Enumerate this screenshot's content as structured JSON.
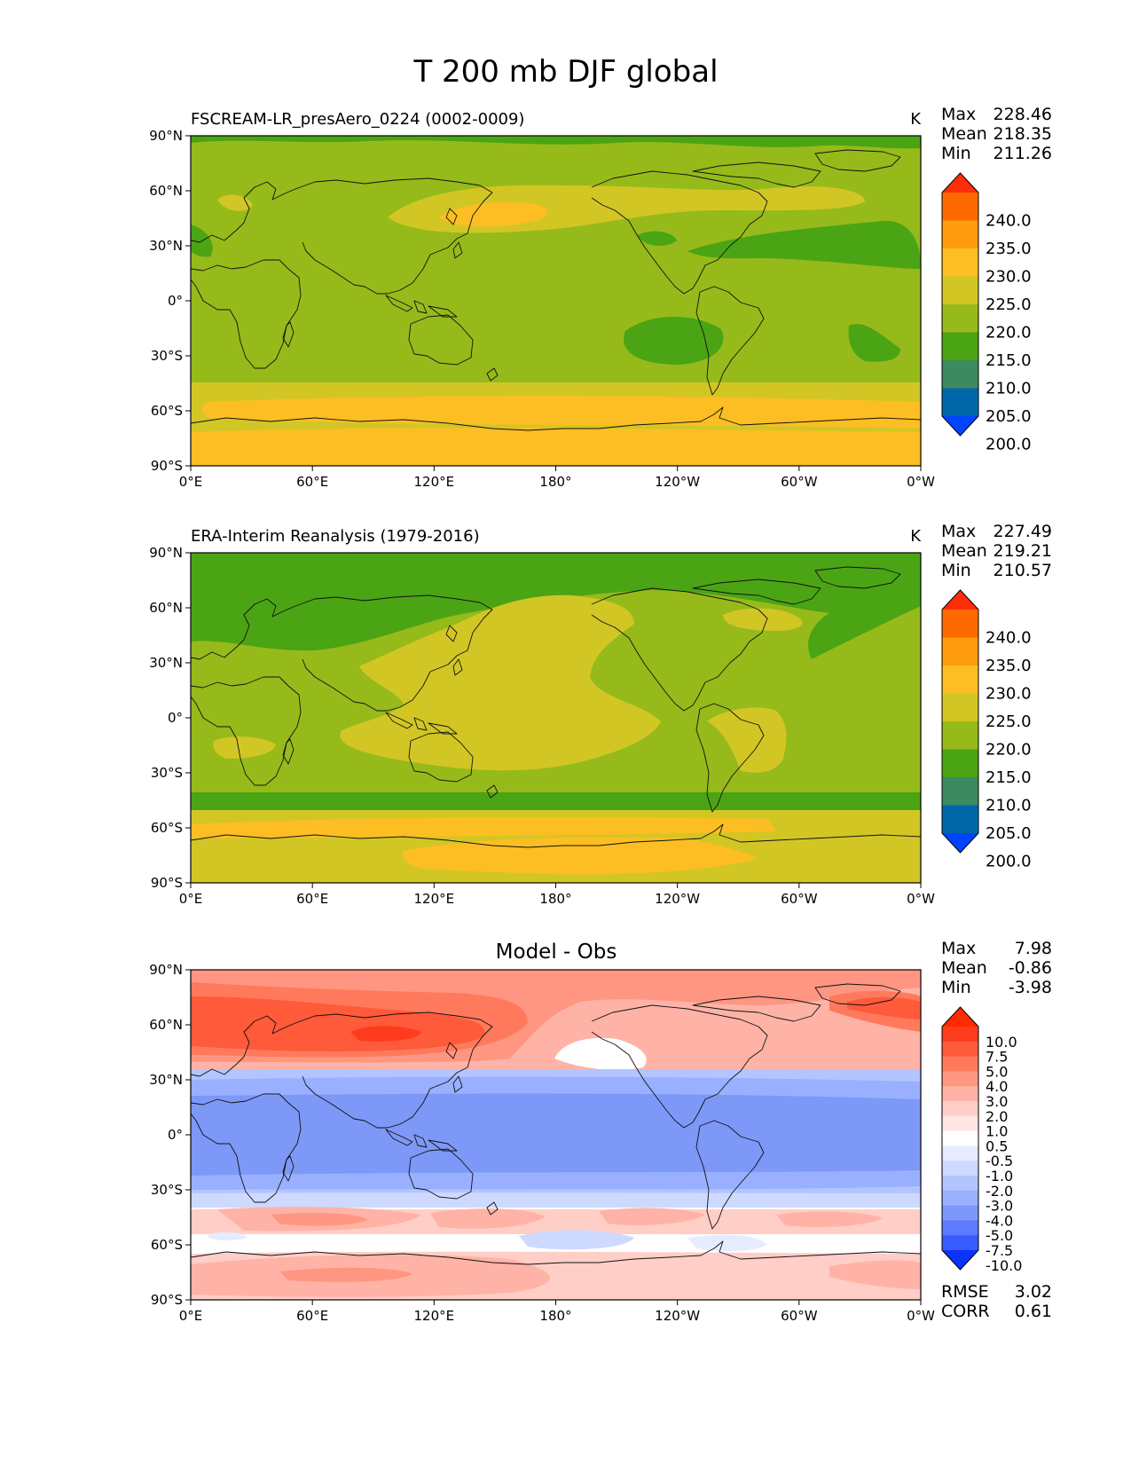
{
  "figure": {
    "title": "T 200 mb DJF global"
  },
  "axes": {
    "lat_ticks": [
      "90°N",
      "60°N",
      "30°N",
      "0°",
      "30°S",
      "60°S",
      "90°S"
    ],
    "lon_ticks": [
      "0°E",
      "60°E",
      "120°E",
      "180°",
      "120°W",
      "60°W",
      "0°W"
    ]
  },
  "panels": [
    {
      "id": "test",
      "left_title": "FSCREAM-LR_presAero_0224 (0002-0009)",
      "center_title": "",
      "units": "K",
      "stats": {
        "max_label": "Max",
        "max": "228.46",
        "mean_label": "Mean",
        "mean": "218.35",
        "min_label": "Min",
        "min": "211.26"
      },
      "colorbar": {
        "labels": [
          "240.0",
          "235.0",
          "230.0",
          "225.0",
          "220.0",
          "215.0",
          "210.0",
          "205.0",
          "200.0"
        ],
        "colors": [
          "#ff2d0a",
          "#ff6a00",
          "#ff9b0f",
          "#fcbe23",
          "#d2c625",
          "#96ba1a",
          "#4ba414",
          "#3c8a60",
          "#0068a8",
          "#0044ff"
        ]
      },
      "regions": [
        {
          "level": "215-220",
          "color": "#96ba1a"
        },
        {
          "level": "210-215",
          "color": "#4ba414"
        },
        {
          "level": "220-225",
          "color": "#d2c625"
        },
        {
          "level": "225-230",
          "color": "#fcbe23"
        }
      ]
    },
    {
      "id": "reference",
      "left_title": "ERA-Interim Reanalysis (1979-2016)",
      "center_title": "",
      "units": "K",
      "stats": {
        "max_label": "Max",
        "max": "227.49",
        "mean_label": "Mean",
        "mean": "219.21",
        "min_label": "Min",
        "min": "210.57"
      },
      "colorbar": {
        "labels": [
          "240.0",
          "235.0",
          "230.0",
          "225.0",
          "220.0",
          "215.0",
          "210.0",
          "205.0",
          "200.0"
        ],
        "colors": [
          "#ff2d0a",
          "#ff6a00",
          "#ff9b0f",
          "#fcbe23",
          "#d2c625",
          "#96ba1a",
          "#4ba414",
          "#3c8a60",
          "#0068a8",
          "#0044ff"
        ]
      },
      "regions": [
        {
          "level": "215-220",
          "color": "#96ba1a"
        },
        {
          "level": "210-215",
          "color": "#4ba414"
        },
        {
          "level": "220-225",
          "color": "#d2c625"
        },
        {
          "level": "225-230",
          "color": "#fcbe23"
        }
      ]
    },
    {
      "id": "difference",
      "left_title": "",
      "center_title": "Model - Obs",
      "units": "",
      "stats": {
        "max_label": "Max",
        "max": "7.98",
        "mean_label": "Mean",
        "mean": "-0.86",
        "min_label": "Min",
        "min": "-3.98"
      },
      "colorbar": {
        "labels": [
          "10.0",
          "7.5",
          "5.0",
          "4.0",
          "3.0",
          "2.0",
          "1.0",
          "0.5",
          "-0.5",
          "-1.0",
          "-2.0",
          "-3.0",
          "-4.0",
          "-5.0",
          "-7.5",
          "-10.0"
        ],
        "colors": [
          "#ff2a00",
          "#ff3b1e",
          "#ff5a3a",
          "#ff7a5c",
          "#ff9682",
          "#ffb3a6",
          "#ffcec6",
          "#ffe6e2",
          "#ffffff",
          "#e6ecff",
          "#cdd9ff",
          "#b3c5ff",
          "#98b0ff",
          "#7d98f7",
          "#5c7bff",
          "#3a5cff",
          "#0b32ff"
        ]
      },
      "regions": [
        {
          "level": "positive",
          "color": "#ff6a4c"
        },
        {
          "level": "negative",
          "color": "#8aa4f4"
        },
        {
          "level": "near-zero",
          "color": "#ffffff"
        }
      ],
      "footer": {
        "rmse_label": "RMSE",
        "rmse": "3.02",
        "corr_label": "CORR",
        "corr": "0.61"
      }
    }
  ]
}
